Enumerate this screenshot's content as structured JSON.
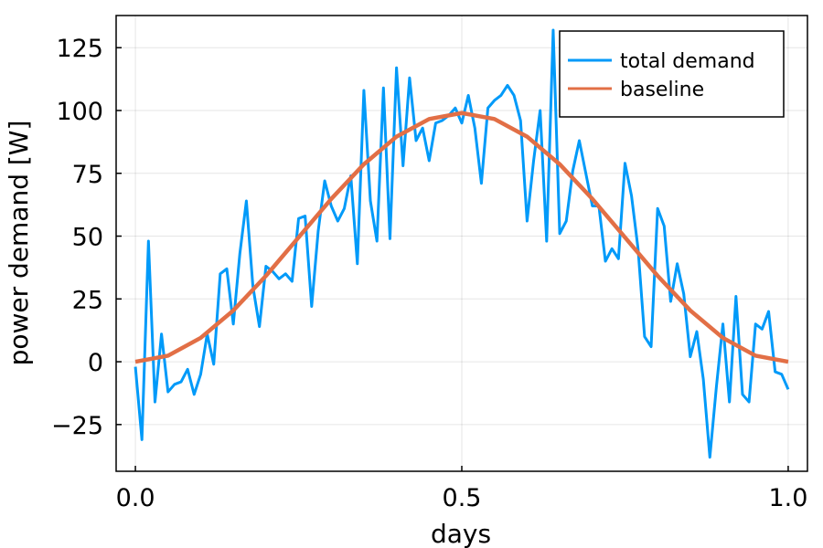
{
  "chart_data": {
    "type": "line",
    "xlabel": "days",
    "ylabel": "power demand [W]",
    "xlim": [
      -0.0295,
      1.0295
    ],
    "ylim": [
      -43.6,
      137.8
    ],
    "xticks": [
      {
        "value": 0,
        "label": "0.0"
      },
      0.5,
      {
        "value": 1,
        "label": "1.0"
      }
    ],
    "yticks": [
      {
        "value": -25,
        "label": "−25"
      },
      0,
      25,
      50,
      75,
      100,
      125
    ],
    "grid": true,
    "legend": "top-right",
    "series": [
      {
        "name": "total demand",
        "color": "#009af9",
        "line_width": 3,
        "x": [
          0,
          0.01,
          0.02,
          0.03,
          0.04,
          0.05,
          0.06,
          0.07,
          0.08,
          0.09,
          0.1,
          0.11,
          0.12,
          0.13,
          0.14,
          0.15,
          0.16,
          0.17,
          0.18,
          0.19,
          0.2,
          0.21,
          0.22,
          0.23,
          0.24,
          0.25,
          0.26,
          0.27,
          0.28,
          0.29,
          0.3,
          0.31,
          0.32,
          0.33,
          0.34,
          0.35,
          0.36,
          0.37,
          0.38,
          0.39,
          0.4,
          0.41,
          0.42,
          0.43,
          0.44,
          0.45,
          0.46,
          0.47,
          0.48,
          0.49,
          0.5,
          0.51,
          0.52,
          0.53,
          0.54,
          0.55,
          0.56,
          0.57,
          0.58,
          0.59,
          0.6,
          0.61,
          0.62,
          0.63,
          0.64,
          0.65,
          0.66,
          0.67,
          0.68,
          0.69,
          0.7,
          0.71,
          0.72,
          0.73,
          0.74,
          0.75,
          0.76,
          0.77,
          0.78,
          0.79,
          0.8,
          0.81,
          0.82,
          0.83,
          0.84,
          0.85,
          0.86,
          0.87,
          0.88,
          0.89,
          0.9,
          0.91,
          0.92,
          0.93,
          0.94,
          0.95,
          0.96,
          0.97,
          0.98,
          0.99,
          1
        ],
        "values": [
          -2,
          -31,
          48,
          -16,
          11,
          -12,
          -9,
          -8,
          -3,
          -13,
          -5,
          11,
          -1,
          35,
          37,
          15,
          43,
          64,
          30,
          14,
          38,
          36,
          33,
          35,
          32,
          57,
          58,
          22,
          52,
          72,
          62,
          56,
          61,
          74,
          39,
          108,
          64,
          48,
          109,
          49,
          117,
          78,
          113,
          88,
          93,
          80,
          95,
          96,
          98,
          101,
          95,
          106,
          93,
          71,
          101,
          104,
          106,
          110,
          106,
          96,
          56,
          80,
          100,
          48,
          132,
          51,
          56,
          76,
          88,
          75,
          62,
          62,
          40,
          45,
          41,
          79,
          66,
          45,
          10,
          6,
          61,
          54,
          24,
          39,
          27,
          2,
          12,
          -7,
          -38,
          -10,
          15,
          -16,
          26,
          -13,
          -16,
          15,
          13,
          20,
          -4,
          -5,
          -11
        ]
      },
      {
        "name": "baseline",
        "color": "#e26f46",
        "line_width": 4.5,
        "x": [
          0,
          0.05,
          0.1,
          0.15,
          0.2,
          0.25,
          0.3,
          0.35,
          0.4,
          0.45,
          0.5,
          0.55,
          0.6,
          0.65,
          0.7,
          0.75,
          0.8,
          0.85,
          0.9,
          0.95,
          1
        ],
        "values": [
          0,
          2.4,
          9.5,
          20.4,
          34.2,
          49.5,
          64.8,
          78.6,
          89.6,
          96.6,
          99,
          96.6,
          89.6,
          78.6,
          64.8,
          49.5,
          34.2,
          20.4,
          9.5,
          2.4,
          0
        ]
      }
    ]
  }
}
